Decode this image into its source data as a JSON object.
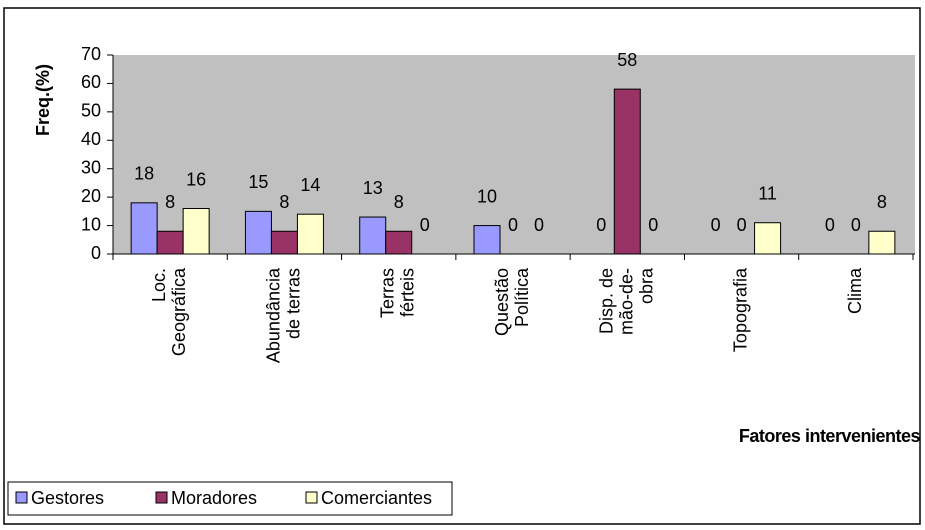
{
  "chart_data": {
    "type": "bar",
    "categories": [
      "Loc.\nGeográfica",
      "Abundância\nde terras",
      "Terras\nférteis",
      "Questão\nPolítica",
      "Disp. de\nmão-de-\nobra",
      "Topografia",
      "Clima"
    ],
    "series": [
      {
        "name": "Gestores",
        "color": "#9999ff",
        "values": [
          18,
          15,
          13,
          10,
          0,
          0,
          0
        ]
      },
      {
        "name": "Moradores",
        "color": "#993366",
        "values": [
          8,
          8,
          8,
          0,
          58,
          0,
          0
        ]
      },
      {
        "name": "Comerciantes",
        "color": "#ffffcc",
        "values": [
          16,
          14,
          0,
          0,
          0,
          11,
          8
        ]
      }
    ],
    "y_label": "Freq.(%)",
    "x_label": "Fatores intervenientes",
    "ylim": [
      0,
      70
    ],
    "yticks": [
      0,
      10,
      20,
      30,
      40,
      50,
      60,
      70
    ],
    "plot_background": "#c0c0c0",
    "legend": "bottom"
  }
}
